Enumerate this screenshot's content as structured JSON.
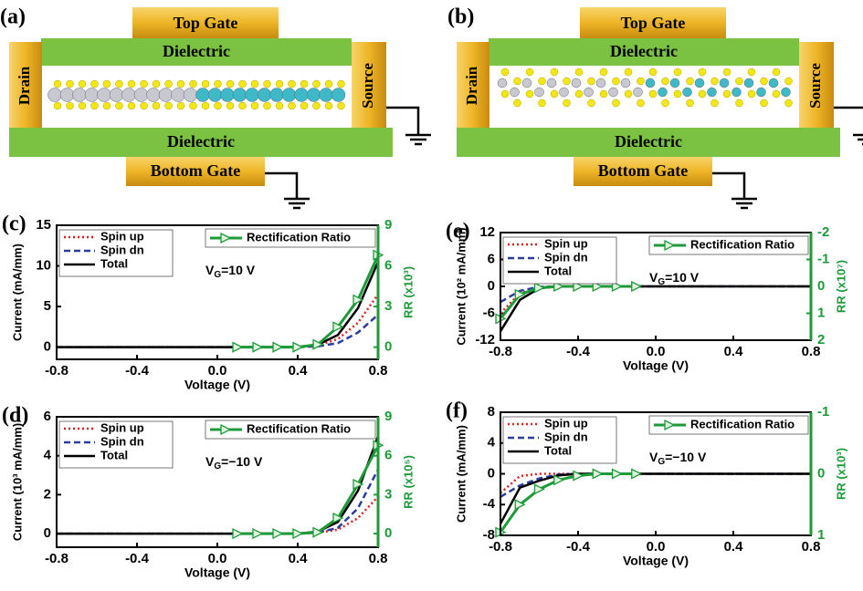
{
  "diagrams": [
    {
      "label": "(a)",
      "top_gate": "Top Gate",
      "dielectric_top": "Dielectric",
      "drain": "Drain",
      "source": "Source",
      "dielectric_bottom": "Dielectric",
      "bottom_gate": "Bottom Gate"
    },
    {
      "label": "(b)",
      "top_gate": "Top Gate",
      "dielectric_top": "Dielectric",
      "drain": "Drain",
      "source": "Source",
      "dielectric_bottom": "Dielectric",
      "bottom_gate": "Bottom Gate"
    }
  ],
  "chart_data": [
    {
      "type": "line",
      "label": "(c)",
      "xlabel": "Voltage (V)",
      "ylabel": "Current (mA/mm)",
      "y2label": "RR (x10³)",
      "annotation": {
        "base": "V",
        "sub": "G",
        "rest": "=10 V"
      },
      "x": [
        -0.8,
        -0.7,
        -0.6,
        -0.5,
        -0.4,
        -0.3,
        -0.2,
        -0.1,
        0,
        0.1,
        0.2,
        0.3,
        0.4,
        0.5,
        0.6,
        0.7,
        0.8
      ],
      "xlim": [
        -0.8,
        0.8
      ],
      "xticks": [
        -0.8,
        -0.4,
        {
          "value": 0,
          "label": "0.0"
        },
        0.4,
        0.8
      ],
      "ylim": [
        -1.5,
        15
      ],
      "yticks": [
        0,
        5,
        10,
        15
      ],
      "y2lim": [
        -0.9,
        9
      ],
      "y2ticks": [
        0,
        3,
        6,
        9
      ],
      "y2color": "#1f9a3a",
      "series": [
        {
          "name": "Spin up",
          "color": "#e02020",
          "style": "dotted",
          "values": [
            0,
            0,
            0,
            0,
            0,
            0,
            0,
            0,
            0,
            0,
            0,
            0,
            0,
            0.2,
            1.0,
            3.0,
            6.5
          ]
        },
        {
          "name": "Spin dn",
          "color": "#2b3c9c",
          "style": "dashed",
          "values": [
            0,
            0,
            0,
            0,
            0,
            0,
            0,
            0,
            0,
            0,
            0,
            0,
            0,
            0.1,
            0.5,
            1.8,
            4.0
          ]
        },
        {
          "name": "Total",
          "color": "#000000",
          "style": "solid",
          "values": [
            0,
            0,
            0,
            0,
            0,
            0,
            0,
            0,
            0,
            0,
            0,
            0,
            0,
            0.3,
            1.5,
            4.8,
            10.5
          ]
        },
        {
          "name": "Rectification Ratio",
          "color": "#1f9a3a",
          "style": "solid",
          "marker": "triangle-right",
          "marker_fill": "#dff3df",
          "axis": "y2",
          "values": [
            null,
            null,
            null,
            null,
            null,
            null,
            null,
            null,
            null,
            0,
            0,
            0,
            0,
            0.2,
            1.5,
            3.5,
            6.8
          ]
        }
      ]
    },
    {
      "type": "line",
      "label": "(d)",
      "xlabel": "Voltage (V)",
      "ylabel": "Current (10³ mA/mm)",
      "y2label": "RR (x10⁵)",
      "annotation": {
        "base": "V",
        "sub": "G",
        "rest": "=−10 V"
      },
      "x": [
        -0.8,
        -0.7,
        -0.6,
        -0.5,
        -0.4,
        -0.3,
        -0.2,
        -0.1,
        0,
        0.1,
        0.2,
        0.3,
        0.4,
        0.5,
        0.6,
        0.7,
        0.8
      ],
      "xlim": [
        -0.8,
        0.8
      ],
      "xticks": [
        -0.8,
        -0.4,
        {
          "value": 0,
          "label": "0.0"
        },
        0.4,
        0.8
      ],
      "ylim": [
        -0.7,
        6
      ],
      "yticks": [
        0,
        2,
        4,
        6
      ],
      "y2lim": [
        -1.05,
        9
      ],
      "y2ticks": [
        0,
        3,
        6,
        9
      ],
      "y2color": "#1f9a3a",
      "series": [
        {
          "name": "Spin up",
          "color": "#e02020",
          "style": "dotted",
          "values": [
            0,
            0,
            0,
            0,
            0,
            0,
            0,
            0,
            0,
            0,
            0,
            0,
            0,
            0.05,
            0.2,
            0.8,
            1.9
          ]
        },
        {
          "name": "Spin dn",
          "color": "#2b3c9c",
          "style": "dashed",
          "values": [
            0,
            0,
            0,
            0,
            0,
            0,
            0,
            0,
            0,
            0,
            0,
            0,
            0,
            0.05,
            0.3,
            1.3,
            3.3
          ]
        },
        {
          "name": "Total",
          "color": "#000000",
          "style": "solid",
          "values": [
            0,
            0,
            0,
            0,
            0,
            0,
            0,
            0,
            0,
            0,
            0,
            0,
            0,
            0.1,
            0.6,
            2.2,
            5.0
          ]
        },
        {
          "name": "Rectification Ratio",
          "color": "#1f9a3a",
          "style": "solid",
          "marker": "triangle-right",
          "marker_fill": "#dff3df",
          "axis": "y2",
          "values": [
            null,
            null,
            null,
            null,
            null,
            null,
            null,
            null,
            null,
            0,
            0,
            0,
            0,
            0.1,
            1.2,
            3.8,
            6.8
          ]
        }
      ]
    },
    {
      "type": "line",
      "label": "(e)",
      "xlabel": "Voltage (V)",
      "ylabel": "Current (10² mA/mm)",
      "y2label": "RR (x10⁷)",
      "annotation": {
        "base": "V",
        "sub": "G",
        "rest": "=10 V"
      },
      "x": [
        -0.8,
        -0.7,
        -0.6,
        -0.5,
        -0.4,
        -0.3,
        -0.2,
        -0.1,
        0,
        0.1,
        0.2,
        0.3,
        0.4,
        0.5,
        0.6,
        0.7,
        0.8
      ],
      "xlim": [
        -0.8,
        0.8
      ],
      "xticks": [
        -0.8,
        -0.4,
        {
          "value": 0,
          "label": "0.0"
        },
        0.4,
        0.8
      ],
      "ylim": [
        -12,
        12
      ],
      "yticks": [
        -12,
        -6,
        0,
        6,
        12
      ],
      "y2lim": [
        2,
        -2
      ],
      "y2ticks": [
        -2,
        -1,
        0,
        1,
        2
      ],
      "y2color": "#1f9a3a",
      "series": [
        {
          "name": "Spin up",
          "color": "#e02020",
          "style": "dotted",
          "values": [
            -6,
            -1.5,
            -0.2,
            0,
            0,
            0,
            0,
            0,
            0,
            0,
            0,
            0,
            0,
            0,
            0,
            0,
            0
          ]
        },
        {
          "name": "Spin dn",
          "color": "#2b3c9c",
          "style": "dashed",
          "values": [
            -3.5,
            -1,
            -0.1,
            0,
            0,
            0,
            0,
            0,
            0,
            0,
            0,
            0,
            0,
            0,
            0,
            0,
            0
          ]
        },
        {
          "name": "Total",
          "color": "#000000",
          "style": "solid",
          "values": [
            -10,
            -3,
            -0.4,
            0,
            0,
            0,
            0,
            0,
            0,
            0,
            0,
            0,
            0,
            0,
            0,
            0,
            0
          ]
        },
        {
          "name": "Rectification Ratio",
          "color": "#1f9a3a",
          "style": "solid",
          "marker": "triangle-right",
          "marker_fill": "#dff3df",
          "axis": "y2",
          "values": [
            1.2,
            0.3,
            0.05,
            0,
            0,
            0,
            0,
            0,
            null,
            null,
            null,
            null,
            null,
            null,
            null,
            null,
            null
          ]
        }
      ]
    },
    {
      "type": "line",
      "label": "(f)",
      "xlabel": "Voltage (V)",
      "ylabel": "Current (mA/mm)",
      "y2label": "RR (x10³)",
      "annotation": {
        "base": "V",
        "sub": "G",
        "rest": "=−10 V"
      },
      "x": [
        -0.8,
        -0.7,
        -0.6,
        -0.5,
        -0.4,
        -0.3,
        -0.2,
        -0.1,
        0,
        0.1,
        0.2,
        0.3,
        0.4,
        0.5,
        0.6,
        0.7,
        0.8
      ],
      "xlim": [
        -0.8,
        0.8
      ],
      "xticks": [
        -0.8,
        -0.4,
        {
          "value": 0,
          "label": "0.0"
        },
        0.4,
        0.8
      ],
      "ylim": [
        -8,
        8
      ],
      "yticks": [
        -8,
        -4,
        0,
        4,
        8
      ],
      "y2lim": [
        1,
        -1
      ],
      "y2ticks": [
        -1,
        0,
        1
      ],
      "y2color": "#1f9a3a",
      "series": [
        {
          "name": "Spin up",
          "color": "#e02020",
          "style": "dotted",
          "values": [
            -2.5,
            -0.3,
            0,
            0,
            0,
            0,
            0,
            0,
            0,
            0,
            0,
            0,
            0,
            0,
            0,
            0,
            0
          ]
        },
        {
          "name": "Spin dn",
          "color": "#2b3c9c",
          "style": "dashed",
          "values": [
            -3,
            -1.5,
            -0.6,
            -0.1,
            0,
            0,
            0,
            0,
            0,
            0,
            0,
            0,
            0,
            0,
            0,
            0,
            0
          ]
        },
        {
          "name": "Total",
          "color": "#000000",
          "style": "solid",
          "values": [
            -6.5,
            -1.8,
            -0.9,
            -0.2,
            0,
            0,
            0,
            0,
            0,
            0,
            0,
            0,
            0,
            0,
            0,
            0,
            0
          ]
        },
        {
          "name": "Rectification Ratio",
          "color": "#1f9a3a",
          "style": "solid",
          "marker": "triangle-right",
          "marker_fill": "#dff3df",
          "axis": "y2",
          "values": [
            0.95,
            0.5,
            0.25,
            0.1,
            0.03,
            0,
            0,
            0,
            null,
            null,
            null,
            null,
            null,
            null,
            null,
            null,
            null
          ]
        }
      ]
    }
  ]
}
